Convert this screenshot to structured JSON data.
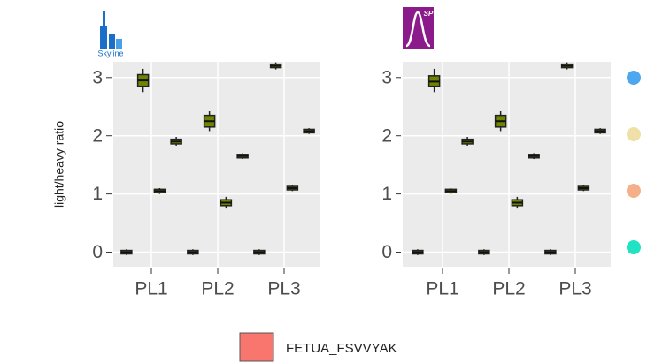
{
  "y_label": "light/heavy ratio",
  "legend": {
    "colors": [
      "#4da6f0",
      "#efe0a8",
      "#f5b08a",
      "#1fe3c2"
    ]
  },
  "fill_legend": {
    "label": "FETUA_FSVVYAK",
    "color": "#f8766d"
  },
  "chart_data": [
    {
      "type": "box",
      "logo": "Skyline",
      "categories": [
        "PL1",
        "PL2",
        "PL3"
      ],
      "ylim": [
        -0.25,
        3.27
      ],
      "yticks": [
        0,
        1,
        2,
        3
      ],
      "grid": true,
      "box_fill": "#6f8400",
      "series": [
        {
          "values": [
            0,
            0,
            0
          ],
          "q1": [
            -0.03,
            -0.03,
            -0.03
          ],
          "q3": [
            0.03,
            0.03,
            0.03
          ],
          "low": [
            -0.05,
            -0.05,
            -0.05
          ],
          "high": [
            0.05,
            0.05,
            0.05
          ]
        },
        {
          "values": [
            2.95,
            2.25,
            3.2
          ],
          "q1": [
            2.85,
            2.15,
            3.17
          ],
          "q3": [
            3.05,
            2.35,
            3.23
          ],
          "low": [
            2.75,
            2.08,
            3.14
          ],
          "high": [
            3.15,
            2.42,
            3.26
          ]
        },
        {
          "values": [
            1.05,
            0.85,
            1.1
          ],
          "q1": [
            1.02,
            0.8,
            1.07
          ],
          "q3": [
            1.08,
            0.9,
            1.13
          ],
          "low": [
            1.0,
            0.75,
            1.05
          ],
          "high": [
            1.1,
            0.95,
            1.15
          ]
        },
        {
          "values": [
            1.9,
            1.65,
            2.08
          ],
          "q1": [
            1.86,
            1.62,
            2.05
          ],
          "q3": [
            1.94,
            1.68,
            2.11
          ],
          "low": [
            1.83,
            1.6,
            2.03
          ],
          "high": [
            1.98,
            1.7,
            2.13
          ]
        }
      ]
    },
    {
      "type": "box",
      "logo": "SP",
      "categories": [
        "PL1",
        "PL2",
        "PL3"
      ],
      "ylim": [
        -0.25,
        3.27
      ],
      "yticks": [
        0,
        1,
        2,
        3
      ],
      "grid": true,
      "box_fill": "#6f8400",
      "series": [
        {
          "values": [
            0,
            0,
            0
          ],
          "q1": [
            -0.03,
            -0.03,
            -0.03
          ],
          "q3": [
            0.03,
            0.03,
            0.03
          ],
          "low": [
            -0.05,
            -0.05,
            -0.05
          ],
          "high": [
            0.05,
            0.05,
            0.05
          ]
        },
        {
          "values": [
            2.93,
            2.25,
            3.2
          ],
          "q1": [
            2.85,
            2.15,
            3.17
          ],
          "q3": [
            3.03,
            2.35,
            3.23
          ],
          "low": [
            2.75,
            2.08,
            3.14
          ],
          "high": [
            3.15,
            2.42,
            3.26
          ]
        },
        {
          "values": [
            1.05,
            0.85,
            1.1
          ],
          "q1": [
            1.02,
            0.8,
            1.07
          ],
          "q3": [
            1.08,
            0.9,
            1.13
          ],
          "low": [
            1.0,
            0.75,
            1.05
          ],
          "high": [
            1.1,
            0.95,
            1.15
          ]
        },
        {
          "values": [
            1.9,
            1.65,
            2.08
          ],
          "q1": [
            1.86,
            1.62,
            2.05
          ],
          "q3": [
            1.94,
            1.68,
            2.11
          ],
          "low": [
            1.83,
            1.6,
            2.03
          ],
          "high": [
            1.98,
            1.7,
            2.13
          ]
        }
      ]
    }
  ]
}
